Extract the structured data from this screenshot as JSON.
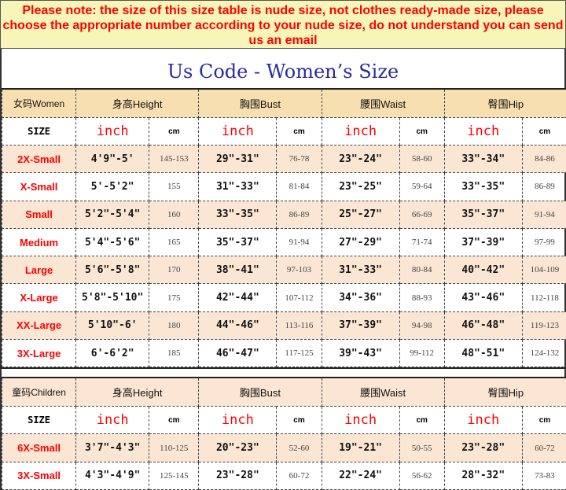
{
  "notice": "Please note: the size of this size table is nude size, not clothes ready-made size, please choose the appropriate number according to your nude size, do not understand you can send us an email",
  "title": "Us Code - Women’s Size",
  "units": {
    "size": "SIZE",
    "inch": "inch",
    "cm": "cm"
  },
  "women": {
    "headers": [
      "女码Women",
      "身高Height",
      "胸围Bust",
      "腰围Waist",
      "臀围Hip"
    ],
    "rows": [
      [
        "2X-Small",
        "4'9\"-5'",
        "145-153",
        "29\"-31\"",
        "76-78",
        "23\"-24\"",
        "58-60",
        "33\"-34\"",
        "84-86"
      ],
      [
        "X-Small",
        "5'-5'2\"",
        "155",
        "31\"-33\"",
        "81-84",
        "23\"-25\"",
        "59-64",
        "33\"-35\"",
        "86-89"
      ],
      [
        "Small",
        "5'2\"-5'4\"",
        "160",
        "33\"-35\"",
        "86-89",
        "25\"-27\"",
        "66-69",
        "35\"-37\"",
        "91-94"
      ],
      [
        "Medium",
        "5'4\"-5'6\"",
        "165",
        "35\"-37\"",
        "91-94",
        "27\"-29\"",
        "71-74",
        "37\"-39\"",
        "97-99"
      ],
      [
        "Large",
        "5'6\"-5'8\"",
        "170",
        "38\"-41\"",
        "97-103",
        "31\"-33\"",
        "80-84",
        "40\"-42\"",
        "104-109"
      ],
      [
        "X-Large",
        "5'8\"-5'10\"",
        "175",
        "42\"-44\"",
        "107-112",
        "34\"-36\"",
        "88-93",
        "43\"-46\"",
        "112-118"
      ],
      [
        "XX-Large",
        "5'10\"-6'",
        "180",
        "44\"-46\"",
        "113-116",
        "37\"-39\"",
        "94-98",
        "46\"-48\"",
        "119-123"
      ],
      [
        "3X-Large",
        "6'-6'2\"",
        "185",
        "46\"-47\"",
        "117-125",
        "39\"-43\"",
        "99-112",
        "48\"-51\"",
        "124-132"
      ]
    ]
  },
  "children": {
    "headers": [
      "童码Children",
      "身高Height",
      "胸围Bust",
      "腰围Waist",
      "臀围Hip"
    ],
    "rows": [
      [
        "6X-Small",
        "3'7\"-4'3\"",
        "110-125",
        "20\"-23\"",
        "52-60",
        "19\"-21\"",
        "50-55",
        "23\"-28\"",
        "60-72"
      ],
      [
        "3X-Small",
        "4'3\"-4'9\"",
        "125-145",
        "23\"-28\"",
        "60-72",
        "22\"-24\"",
        "56-62",
        "28\"-32\"",
        "73-83"
      ]
    ]
  },
  "colors": {
    "notice_bg": "#f8f5b9",
    "notice_text": "#ff0000",
    "title": "#2a2aa0",
    "header_bg": "#f8dfb0",
    "stripe_bg": "#fbe6d4"
  }
}
